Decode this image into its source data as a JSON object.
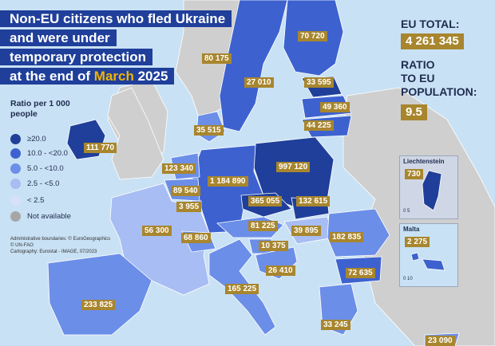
{
  "title": {
    "line1": "Non-EU citizens who fled Ukraine",
    "line2": "and were under",
    "line3": "temporary protection",
    "line4_pre": "at the end of ",
    "line4_month": "March",
    "line4_post": " 2025"
  },
  "legend": {
    "title": "Ratio per 1 000 people",
    "items": [
      {
        "label": "≥20.0",
        "color": "#1f3f9a"
      },
      {
        "label": "10.0 - <20.0",
        "color": "#3d62cf"
      },
      {
        "label": "5.0 - <10.0",
        "color": "#6b8ee8"
      },
      {
        "label": "2.5 - <5.0",
        "color": "#a7bdf3"
      },
      {
        "label": "< 2.5",
        "color": "#d6e0fa"
      },
      {
        "label": "Not available",
        "color": "#a6a6a6"
      }
    ]
  },
  "credits": {
    "line1": "Administrative boundaries: © EuroGeographics",
    "line2": "© UN-FAO",
    "line3": "Cartography: Eurostat - IMAGE, 07/2023"
  },
  "eu_total": {
    "label": "EU TOTAL:",
    "value": "4 261 345"
  },
  "ratio": {
    "line1": "RATIO",
    "line2": "TO EU",
    "line3": "POPULATION:",
    "value": "9.5"
  },
  "countries": {
    "finland": "70 720",
    "sweden": "80 175",
    "norway_area_estonia": "33 595",
    "latvia": "49 360",
    "lithuania": "44 225",
    "denmark": "35 515",
    "baltic": "27 010",
    "ireland": "111 770",
    "netherlands": "123 340",
    "belgium": "89 540",
    "luxembourg": "3 955",
    "germany": "1 184 890",
    "poland": "997 120",
    "czechia": "365 055",
    "slovakia": "132 615",
    "austria": "81 225",
    "hungary": "39 895",
    "slovenia": "10 375",
    "croatia": "26 410",
    "romania": "182 835",
    "bulgaria": "72 635",
    "france": "56 300",
    "switzerland_area": "68 860",
    "italy": "165 225",
    "spain": "233 825",
    "greece": "33 245",
    "cyprus": "23 090"
  },
  "insets": {
    "liechtenstein": {
      "label": "Liechtenstein",
      "value": "730",
      "scale": "0   5"
    },
    "malta": {
      "label": "Malta",
      "value": "2 275",
      "scale": "0   10"
    }
  }
}
